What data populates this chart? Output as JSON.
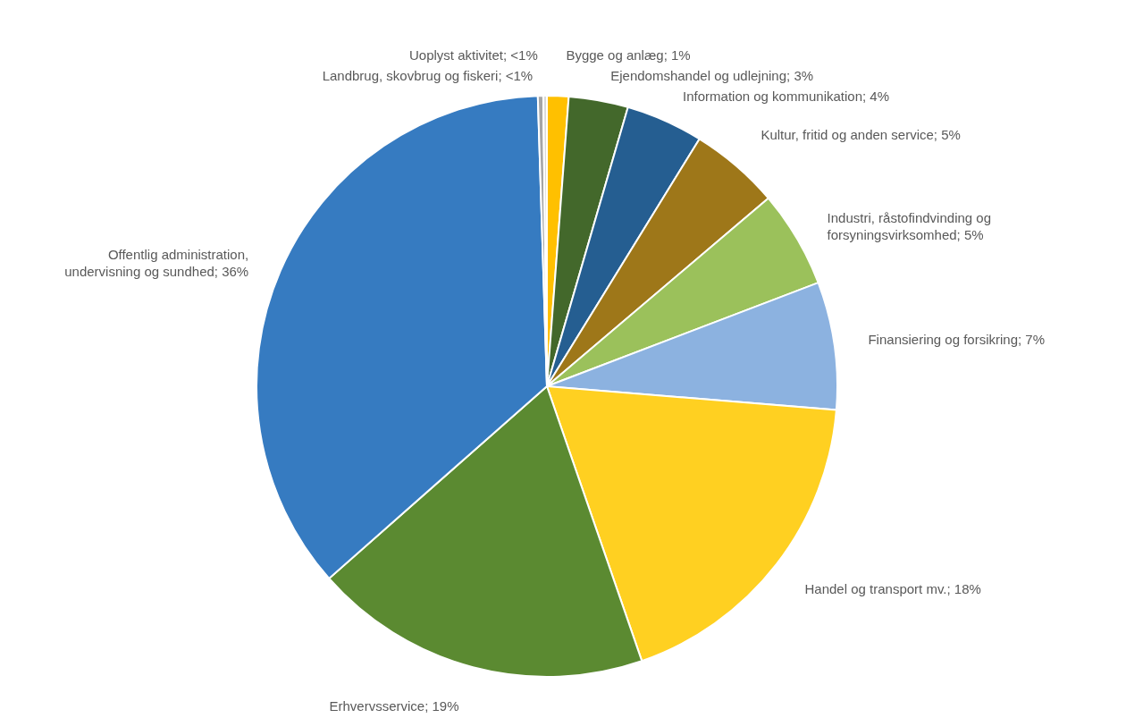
{
  "chart_data": {
    "type": "pie",
    "categories": [
      "Bygge og anlæg",
      "Ejendomshandel og udlejning",
      "Information og kommunikation",
      "Kultur, fritid og anden service",
      "Industri, råstofindvinding og forsyningsvirksomhed",
      "Finansiering og forsikring",
      "Handel og transport mv.",
      "Erhvervsservice",
      "Offentlig administration, undervisning og sundhed",
      "Landbrug, skovbrug og fiskeri",
      "Uoplyst aktivitet"
    ],
    "values": [
      1.2,
      3.3,
      4.3,
      5.0,
      5.4,
      7.1,
      18.4,
      18.8,
      36.0,
      0.3,
      0.2
    ],
    "value_labels": [
      "1%",
      "3%",
      "4%",
      "5%",
      "5%",
      "7%",
      "18%",
      "19%",
      "36%",
      "<1%",
      "<1%"
    ],
    "colors": [
      "#ffc000",
      "#43682b",
      "#255e91",
      "#9e7719",
      "#9bc15b",
      "#8cb2e0",
      "#ffd021",
      "#5b8a31",
      "#367bc1",
      "#a5a5a5",
      "#d9d9d9"
    ]
  }
}
